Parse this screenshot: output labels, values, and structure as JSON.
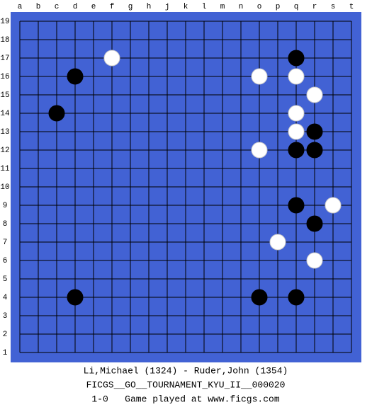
{
  "board": {
    "columns": [
      "a",
      "b",
      "c",
      "d",
      "e",
      "f",
      "g",
      "h",
      "j",
      "k",
      "l",
      "m",
      "n",
      "o",
      "p",
      "q",
      "r",
      "s",
      "t"
    ],
    "rows": [
      19,
      18,
      17,
      16,
      15,
      14,
      13,
      12,
      11,
      10,
      9,
      8,
      7,
      6,
      5,
      4,
      3,
      2,
      1
    ],
    "stones": [
      {
        "color": "black",
        "col": "q",
        "row": 17
      },
      {
        "color": "black",
        "col": "d",
        "row": 16
      },
      {
        "color": "black",
        "col": "c",
        "row": 14
      },
      {
        "color": "black",
        "col": "r",
        "row": 13
      },
      {
        "color": "black",
        "col": "q",
        "row": 12
      },
      {
        "color": "black",
        "col": "r",
        "row": 12
      },
      {
        "color": "black",
        "col": "q",
        "row": 9
      },
      {
        "color": "black",
        "col": "r",
        "row": 8
      },
      {
        "color": "black",
        "col": "d",
        "row": 4
      },
      {
        "color": "black",
        "col": "o",
        "row": 4
      },
      {
        "color": "black",
        "col": "q",
        "row": 4
      },
      {
        "color": "white",
        "col": "f",
        "row": 17
      },
      {
        "color": "white",
        "col": "o",
        "row": 16
      },
      {
        "color": "white",
        "col": "q",
        "row": 16
      },
      {
        "color": "white",
        "col": "r",
        "row": 15
      },
      {
        "color": "white",
        "col": "q",
        "row": 14
      },
      {
        "color": "white",
        "col": "q",
        "row": 13
      },
      {
        "color": "white",
        "col": "o",
        "row": 12
      },
      {
        "color": "white",
        "col": "s",
        "row": 9
      },
      {
        "color": "white",
        "col": "p",
        "row": 7
      },
      {
        "color": "white",
        "col": "r",
        "row": 6
      }
    ]
  },
  "footer": {
    "players": "Li,Michael (1324) - Ruder,John (1354)",
    "event": "FICGS__GO__TOURNAMENT_KYU_II__000020",
    "result": "1-0   Game played at www.ficgs.com"
  }
}
